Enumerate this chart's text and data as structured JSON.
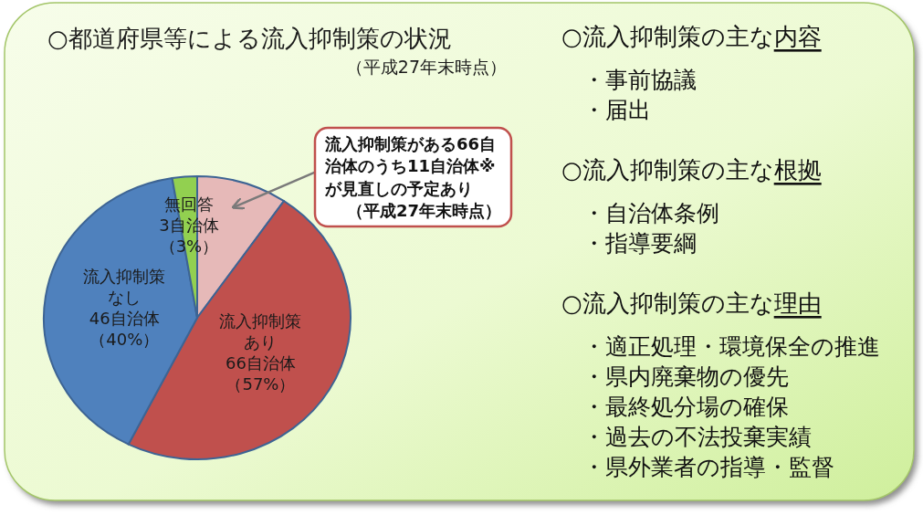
{
  "chart_data": [
    {
      "type": "pie",
      "title": "○都道府県等による流入抑制策の状況",
      "subtitle": "（平成27年末時点）",
      "categories": [
        null,
        "流入抑制策あり66自治体（57%）",
        "流入抑制策なし46自治体（40%）",
        "無回答3自治体（3%）"
      ],
      "values": [
        11,
        55,
        46,
        3
      ],
      "colors": [
        "#e6b9b8",
        "#c0504d",
        "#4f81bd",
        "#92d050"
      ],
      "annotations": [
        "流入抑制策がある66自治体のうち11自治体※が見直しの予定あり（平成27年末時点）"
      ]
    },
    {
      "type": "other",
      "title": "○流入抑制策の主な内容",
      "annotations": [
        "・事前協議",
        "・届出"
      ]
    },
    {
      "type": "other",
      "title": "○流入抑制策の主な根拠",
      "annotations": [
        "・自治体条例",
        "・指導要綱"
      ]
    },
    {
      "type": "other",
      "title": "○流入抑制策の主な理由",
      "annotations": [
        "・適正処理・環境保全の推進",
        "・県内廃棄物の優先",
        "・最終処分場の確保",
        "・過去の不法投棄実績",
        "・県外業者の指導・監督"
      ]
    }
  ]
}
